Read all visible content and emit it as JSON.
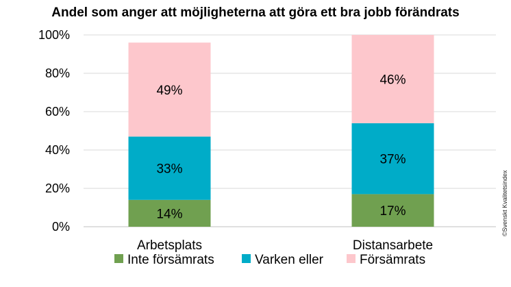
{
  "chart_data": {
    "type": "bar",
    "stacked": true,
    "title": "Andel som anger att möjligheterna att göra ett bra jobb förändrats",
    "categories": [
      "Arbetsplats",
      "Distansarbete"
    ],
    "series": [
      {
        "name": "Inte försämrats",
        "color": "#70a050",
        "values": [
          14,
          17
        ],
        "labels": [
          "14%",
          "17%"
        ]
      },
      {
        "name": "Varken eller",
        "color": "#00acc8",
        "values": [
          33,
          37
        ],
        "labels": [
          "33%",
          "37%"
        ]
      },
      {
        "name": "Försämrats",
        "color": "#fdc7cc",
        "values": [
          49,
          46
        ],
        "labels": [
          "49%",
          "46%"
        ]
      }
    ],
    "ylim": [
      0,
      100
    ],
    "yticks": [
      0,
      20,
      40,
      60,
      80,
      100
    ],
    "ytick_labels": [
      "0%",
      "20%",
      "40%",
      "60%",
      "80%",
      "100%"
    ],
    "grid": true,
    "legend_position": "bottom",
    "credit": "©Svenskt Kvalitetsindex"
  }
}
